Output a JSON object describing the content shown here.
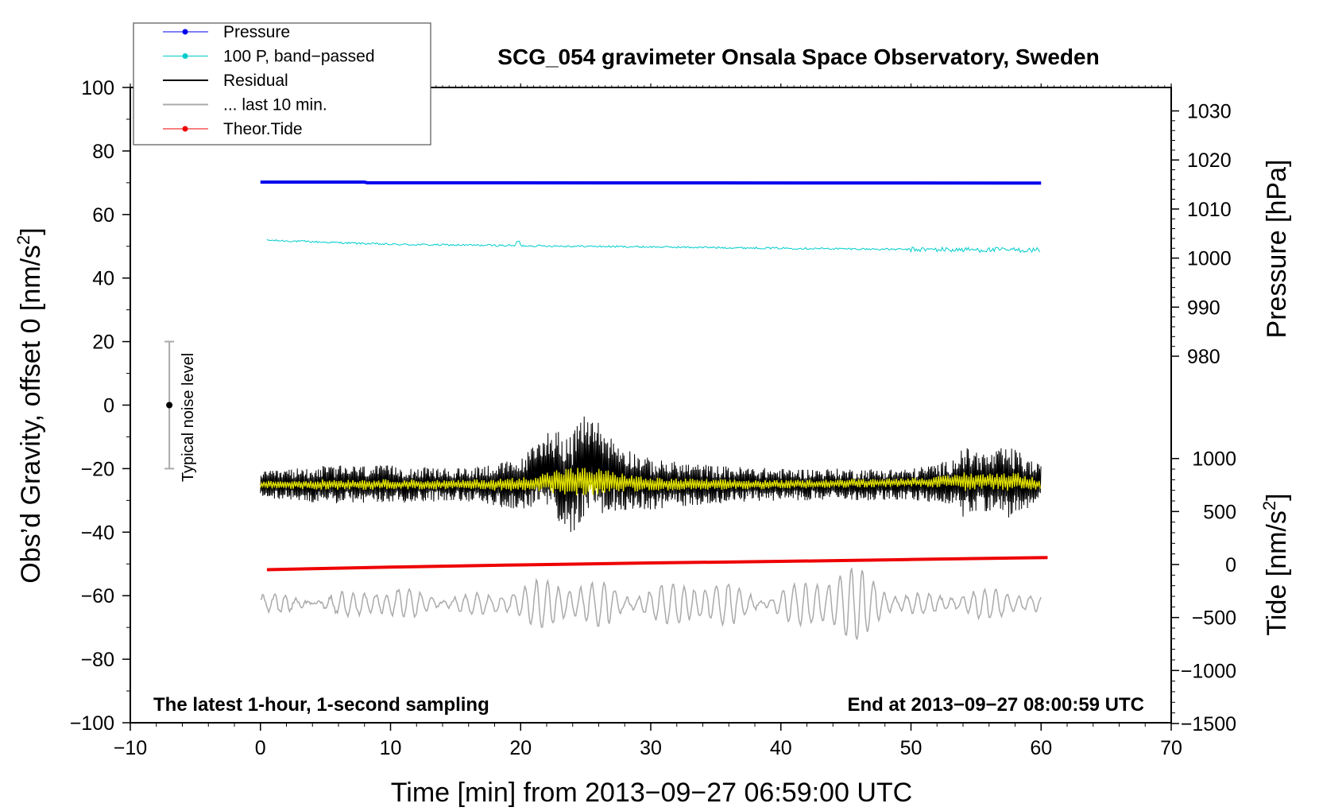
{
  "chart_data": {
    "type": "line",
    "title": "SCG_054 gravimeter Onsala Space Observatory, Sweden",
    "xlabel": "Time [min] from 2013−09−27 06:59:00 UTC",
    "ylabel_left": "Obs’d Gravity, offset 0 [nm/s²]",
    "ylabel_left_main": "Obs’d Gravity, offset 0 [nm/s",
    "ylabel_left_sup": "2",
    "ylabel_left_end": "]",
    "ylabel_right_pressure": "Pressure [hPa]",
    "ylabel_right_tide_main": "Tide [nm/s",
    "ylabel_right_tide_sup": "2",
    "ylabel_right_tide_end": "]",
    "xlim": [
      -10,
      70
    ],
    "ylim_left": [
      -100,
      100
    ],
    "x_ticks": [
      -10,
      0,
      10,
      20,
      30,
      40,
      50,
      60,
      70
    ],
    "x_tick_labels": [
      "−10",
      "0",
      "10",
      "20",
      "30",
      "40",
      "50",
      "60",
      "70"
    ],
    "y_left_ticks": [
      -100,
      -80,
      -60,
      -40,
      -20,
      0,
      20,
      40,
      60,
      80,
      100
    ],
    "y_left_tick_labels": [
      "−100",
      "−80",
      "−60",
      "−40",
      "−20",
      "0",
      "20",
      "40",
      "60",
      "80",
      "100"
    ],
    "pressure_axis": {
      "ticks": [
        980,
        990,
        1000,
        1010,
        1020,
        1030
      ],
      "tick_labels": [
        "980",
        "990",
        "1000",
        "1010",
        "1020",
        "1030"
      ]
    },
    "tide_axis": {
      "ticks": [
        -1500,
        -1000,
        -500,
        0,
        500,
        1000
      ],
      "tick_labels": [
        "−1500",
        "−1000",
        "−500",
        "0",
        "500",
        "1000"
      ]
    },
    "annotations": {
      "bottom_left": "The latest 1-hour, 1-second sampling",
      "bottom_right": "End at 2013−09−27 08:00:59 UTC",
      "noise_label": "Typical noise level"
    },
    "noise_bar": {
      "x": -7,
      "center": 0,
      "low": -20,
      "high": 20
    },
    "legend": [
      {
        "label": "Pressure",
        "color": "#0000ee",
        "marker": true
      },
      {
        "label": "100 P, band−passed",
        "color": "#00cccc",
        "marker": true
      },
      {
        "label": "Residual",
        "color": "#000000",
        "marker": false
      },
      {
        "label": "... last 10 min.",
        "color": "#aaaaaa",
        "marker": false
      },
      {
        "label": "Theor.Tide",
        "color": "#ee0000",
        "marker": true
      }
    ],
    "series": [
      {
        "name": "Pressure",
        "color": "#0000ee",
        "x": [
          0,
          8,
          8.2,
          60
        ],
        "values": [
          70.2,
          70.2,
          70.0,
          69.9
        ]
      },
      {
        "name": "100 P, band-passed",
        "color": "#00cccc",
        "x": [
          0.5,
          10,
          20,
          30,
          40,
          50,
          60
        ],
        "values": [
          51.9,
          50.6,
          50.2,
          49.8,
          49.4,
          49.0,
          48.8
        ]
      },
      {
        "name": "Residual",
        "color": "#000000",
        "x": [
          0,
          15,
          20,
          22,
          24,
          25,
          27,
          30,
          40,
          50,
          55,
          60
        ],
        "values": [
          -25,
          -25,
          -25,
          -20,
          -25,
          -18,
          -22,
          -25,
          -25,
          -25,
          -24,
          -25
        ]
      },
      {
        "name": "Residual envelope",
        "color": "#000000",
        "x": [
          0,
          5,
          10,
          15,
          20,
          22,
          23,
          24,
          25,
          26,
          27,
          28,
          30,
          35,
          40,
          45,
          50,
          53,
          54,
          55,
          56,
          57,
          58,
          59,
          60
        ],
        "values": [
          4,
          6,
          6,
          5,
          8,
          12,
          15,
          16,
          16,
          15,
          12,
          10,
          8,
          6,
          5,
          5,
          5,
          7,
          11,
          10,
          9,
          11,
          11,
          8,
          6
        ]
      },
      {
        "name": "Residual smoothed",
        "color": "#dddd00",
        "x": [
          0,
          20,
          23,
          27,
          30,
          40,
          54,
          58,
          60
        ],
        "values": [
          -25,
          -25,
          -24,
          -24,
          -25,
          -25,
          -24,
          -24,
          -25
        ]
      },
      {
        "name": "Theor.Tide",
        "color": "#ee0000",
        "x": [
          0.5,
          10,
          20,
          30,
          40,
          50,
          60.5
        ],
        "values": [
          -51.8,
          -51.0,
          -50.3,
          -49.7,
          -49.2,
          -48.6,
          -48.0
        ]
      },
      {
        "name": "... last 10 min.",
        "color": "#aaaaaa",
        "x": [
          0,
          60
        ],
        "values": [
          -62.5,
          -62.5
        ]
      },
      {
        "name": "... last 10 min. amplitude",
        "color": "#aaaaaa",
        "x": [
          0,
          10,
          20,
          25,
          27,
          30,
          40,
          44,
          46,
          50,
          60
        ],
        "values": [
          4,
          5,
          6,
          12,
          12,
          7,
          9,
          12,
          12,
          6,
          4
        ]
      }
    ]
  }
}
